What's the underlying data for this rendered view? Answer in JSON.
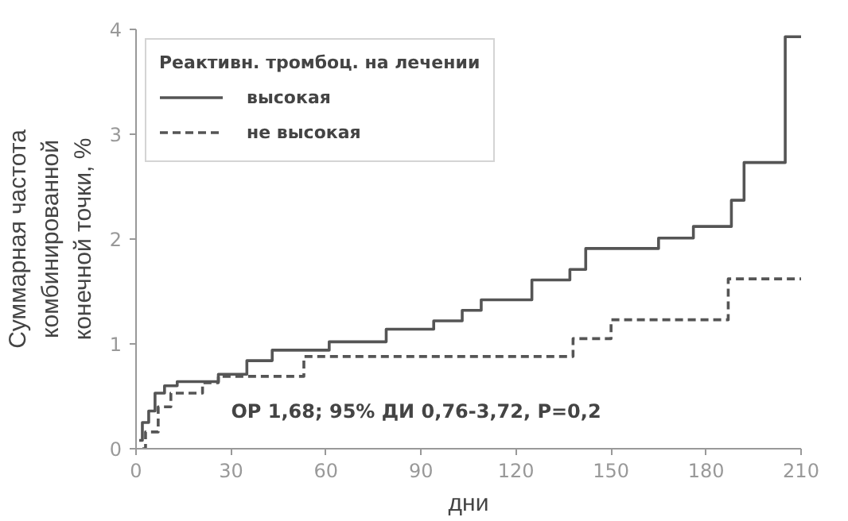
{
  "chart_data": {
    "type": "step",
    "xlabel": "дни",
    "ylabel": "Суммарная частота\nкомбинированной\nконечной точки, %",
    "legend_title": "Реактивн. тромбоц. на лечении",
    "xlim": [
      0,
      210
    ],
    "xticks": [
      0,
      30,
      60,
      90,
      120,
      150,
      180,
      210
    ],
    "ylim": [
      0,
      4
    ],
    "yticks": [
      0,
      1,
      2,
      3,
      4
    ],
    "grid": false,
    "legend": "top left",
    "marker": "none",
    "annotations": [
      "ОР 1,68; 95% ДИ 0,76-3,72, P=0,2"
    ],
    "series": [
      {
        "name": "высокая",
        "color": "#555555",
        "line_style": "solid",
        "x": [
          1,
          2,
          4,
          6,
          9,
          13,
          26,
          35,
          43,
          61,
          79,
          94,
          103,
          109,
          125,
          137,
          142,
          165,
          176,
          188,
          192,
          205,
          210
        ],
        "values": [
          0.08,
          0.25,
          0.36,
          0.53,
          0.6,
          0.64,
          0.71,
          0.84,
          0.94,
          1.02,
          1.14,
          1.22,
          1.32,
          1.42,
          1.61,
          1.71,
          1.91,
          2.01,
          2.12,
          2.37,
          2.73,
          3.93,
          3.93
        ]
      },
      {
        "name": "не высокая",
        "color": "#555555",
        "line_style": "dashed",
        "x": [
          2,
          3,
          7,
          11,
          21,
          26,
          53,
          138,
          150,
          187,
          210
        ],
        "values": [
          0.0,
          0.16,
          0.4,
          0.53,
          0.63,
          0.69,
          0.88,
          1.05,
          1.23,
          1.62,
          1.62
        ]
      }
    ]
  }
}
